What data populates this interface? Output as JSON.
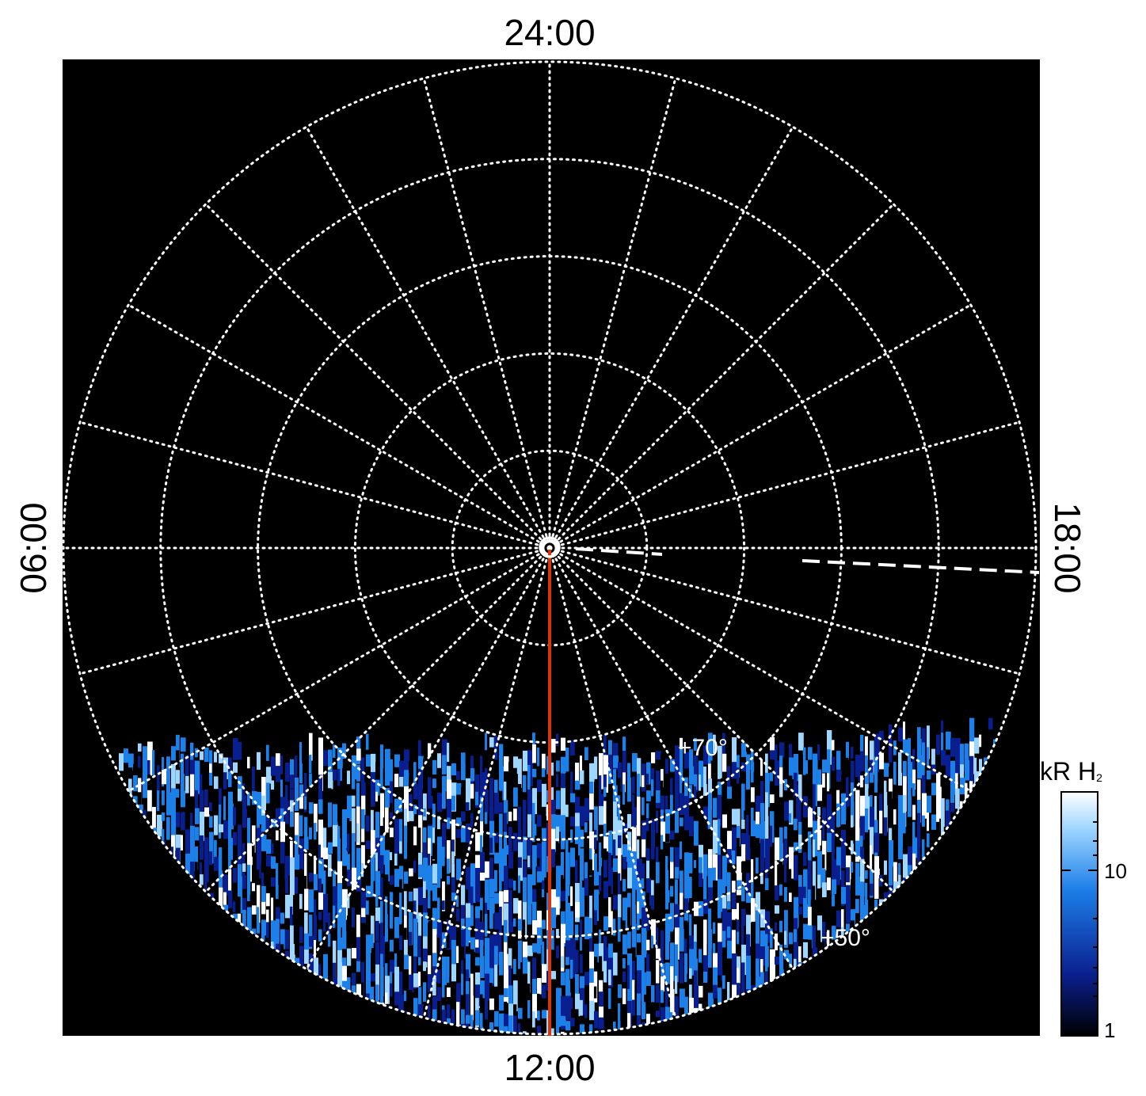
{
  "chart_data": {
    "type": "heatmap",
    "projection": "polar",
    "title": "",
    "pole_latitude": 90,
    "local_time_labels": {
      "top": "24:00",
      "bottom": "12:00",
      "left": "06:00",
      "right": "18:00"
    },
    "latitude_circles": [
      80,
      70,
      60,
      50,
      40
    ],
    "latitude_labels": [
      {
        "text": "+70°",
        "latitude": 70
      },
      {
        "text": "+50°",
        "latitude": 50
      }
    ],
    "longitude_step_degrees": 15,
    "outer_latitude": 40,
    "grid": true,
    "grid_style": "dotted",
    "background_color": "#000000",
    "grid_color": "#ffffff",
    "emission_region": {
      "local_time_start": "~07:30",
      "local_time_end": "~16:30",
      "latitude_max": 73,
      "latitude_min": 40,
      "description_of_shape": "dayside band"
    },
    "meridian_line": {
      "local_time": "12:00",
      "color": "#d6360f"
    },
    "dashed_line": {
      "color": "#ffffff",
      "local_time_start": "18:00"
    },
    "colorbar": {
      "title": "kR H",
      "title_subscript": "2",
      "scale": "log",
      "range": [
        1,
        25
      ],
      "tick_labels": [
        "1",
        "10"
      ],
      "tick_values": [
        1,
        10
      ],
      "colors": [
        "#000000",
        "#0a1f8f",
        "#1d7fe8",
        "#9fd6ff",
        "#ffffff"
      ]
    }
  }
}
